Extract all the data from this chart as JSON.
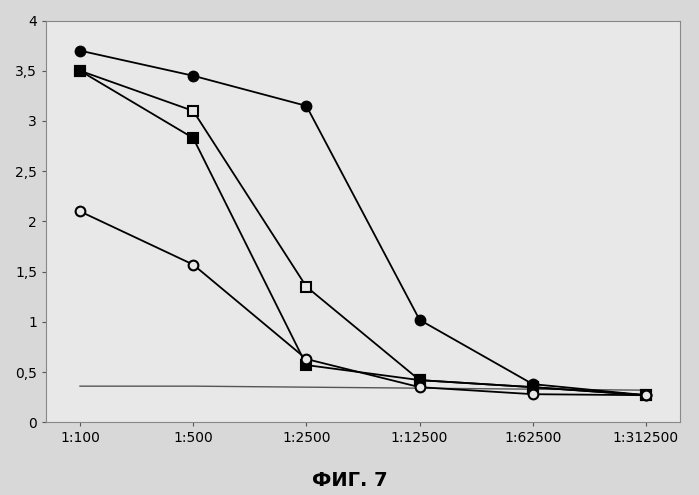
{
  "x_labels": [
    "1:100",
    "1:500",
    "1:2500",
    "1:12500",
    "1:62500",
    "1:312500"
  ],
  "x_positions": [
    0,
    1,
    2,
    3,
    4,
    5
  ],
  "series": [
    {
      "name": "filled_circle",
      "marker": "o",
      "filled": true,
      "color": "#000000",
      "markersize": 7,
      "y": [
        3.7,
        3.45,
        3.15,
        1.02,
        0.38,
        0.27
      ]
    },
    {
      "name": "open_square",
      "marker": "s",
      "filled": false,
      "color": "#000000",
      "markersize": 7,
      "y": [
        3.5,
        3.1,
        1.35,
        0.42,
        0.35,
        0.27
      ]
    },
    {
      "name": "filled_square",
      "marker": "s",
      "filled": true,
      "color": "#000000",
      "markersize": 7,
      "y": [
        3.5,
        2.83,
        0.57,
        0.42,
        0.35,
        0.27
      ]
    },
    {
      "name": "open_circle",
      "marker": "o",
      "filled": false,
      "color": "#000000",
      "markersize": 7,
      "y": [
        2.1,
        1.57,
        0.63,
        0.35,
        0.28,
        0.27
      ]
    }
  ],
  "flat_line": {
    "y": [
      0.36,
      0.36,
      0.35,
      0.34,
      0.33,
      0.32
    ],
    "color": "#555555",
    "linewidth": 1.0
  },
  "ylim": [
    0,
    4
  ],
  "yticks": [
    0,
    0.5,
    1,
    1.5,
    2,
    2.5,
    3,
    3.5,
    4
  ],
  "ytick_labels": [
    "0",
    "0,5",
    "1",
    "1,5",
    "2",
    "2,5",
    "3",
    "3,5",
    "4"
  ],
  "caption": "ФИГ. 7",
  "caption_fontsize": 14,
  "figure_facecolor": "#d8d8d8",
  "axes_facecolor": "#e8e8e8",
  "linewidth": 1.3,
  "border_color": "#888888"
}
